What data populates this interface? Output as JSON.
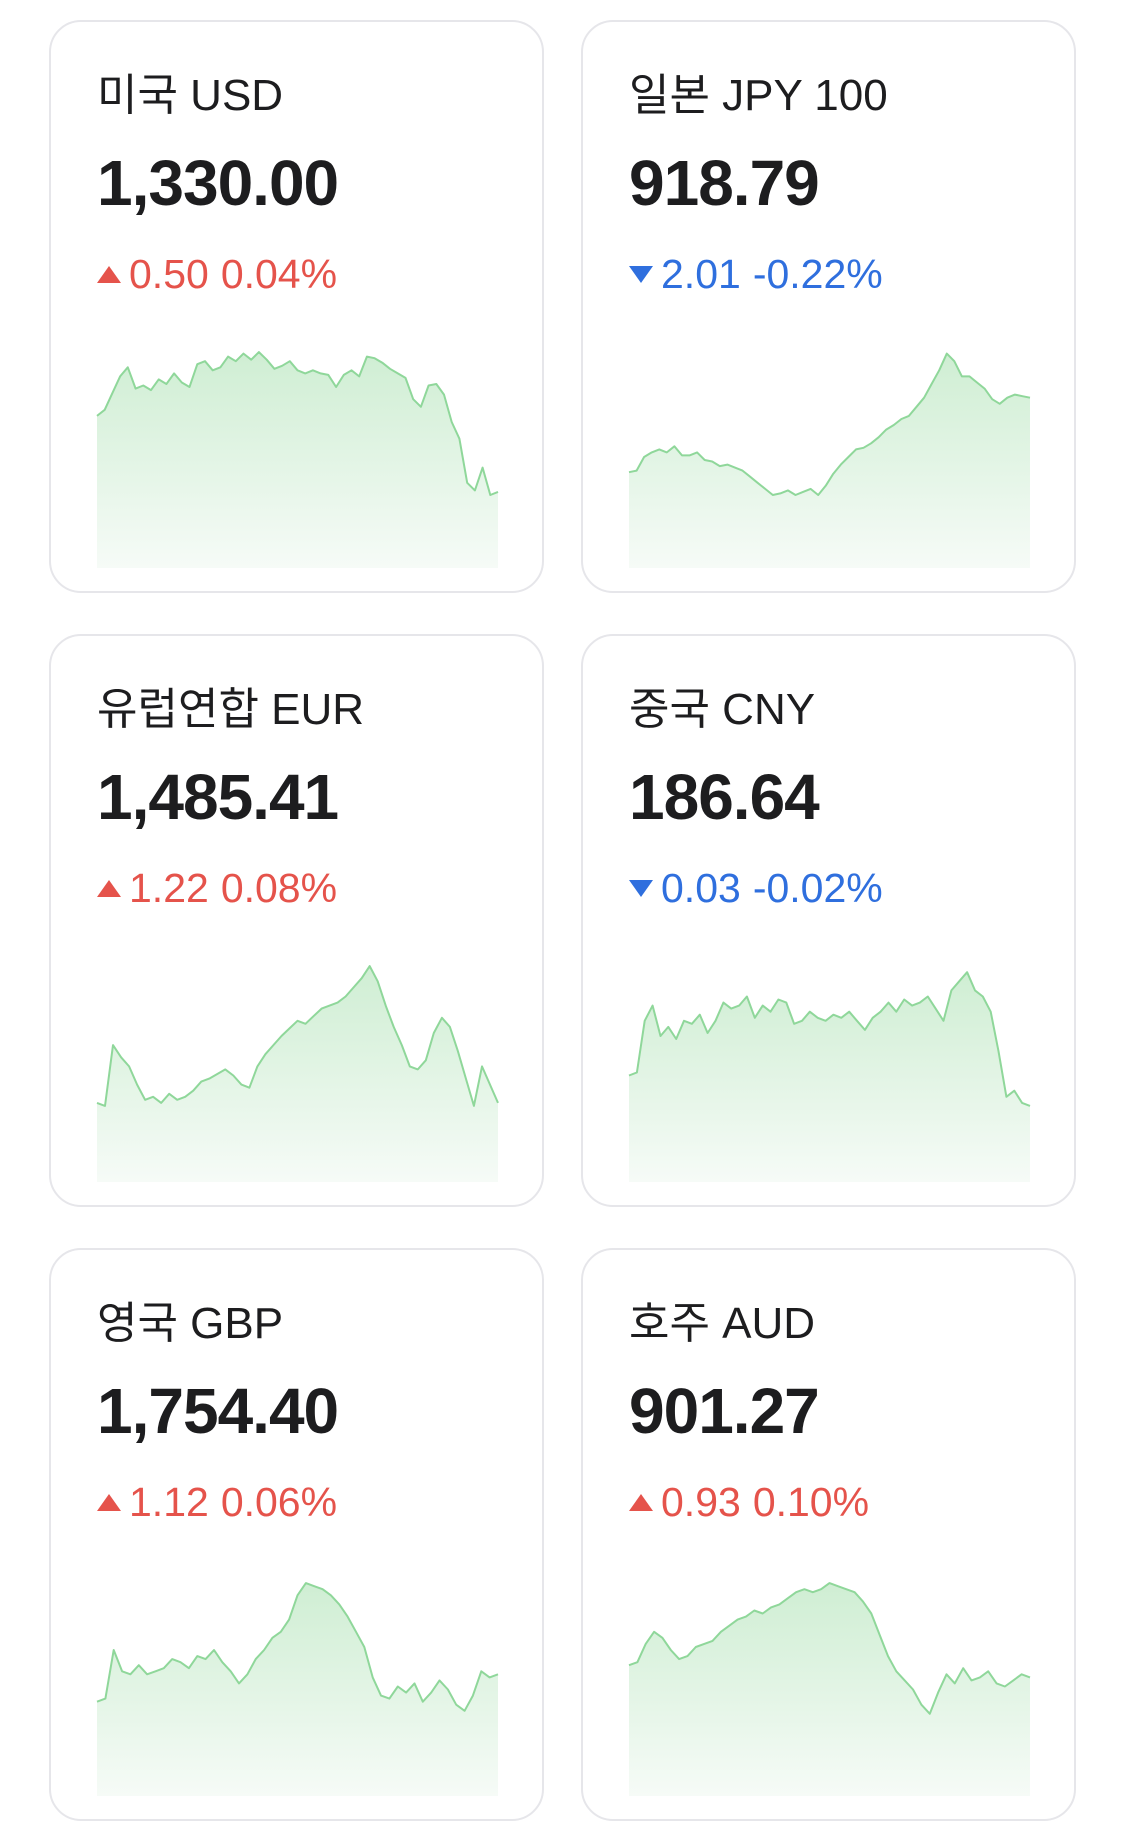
{
  "cards": [
    {
      "name": "미국 USD",
      "rate": "1,330.00",
      "direction": "up",
      "change": "0.50",
      "percent": "0.04%",
      "sparkline": [
        0.54,
        0.58,
        0.69,
        0.8,
        0.86,
        0.72,
        0.74,
        0.71,
        0.78,
        0.75,
        0.82,
        0.76,
        0.73,
        0.88,
        0.9,
        0.84,
        0.86,
        0.93,
        0.9,
        0.95,
        0.91,
        0.96,
        0.91,
        0.85,
        0.87,
        0.9,
        0.84,
        0.82,
        0.84,
        0.82,
        0.81,
        0.73,
        0.81,
        0.84,
        0.8,
        0.93,
        0.92,
        0.89,
        0.85,
        0.82,
        0.79,
        0.65,
        0.6,
        0.74,
        0.75,
        0.68,
        0.5,
        0.39,
        0.1,
        0.05,
        0.2,
        0.02,
        0.04
      ]
    },
    {
      "name": "일본 JPY 100",
      "rate": "918.79",
      "direction": "down",
      "change": "2.01",
      "percent": "-0.22%",
      "sparkline": [
        0.17,
        0.18,
        0.27,
        0.3,
        0.32,
        0.3,
        0.34,
        0.28,
        0.28,
        0.3,
        0.25,
        0.24,
        0.21,
        0.22,
        0.2,
        0.18,
        0.14,
        0.1,
        0.06,
        0.02,
        0.03,
        0.05,
        0.02,
        0.04,
        0.06,
        0.02,
        0.08,
        0.16,
        0.22,
        0.27,
        0.32,
        0.33,
        0.36,
        0.4,
        0.45,
        0.48,
        0.52,
        0.54,
        0.6,
        0.66,
        0.75,
        0.84,
        0.95,
        0.9,
        0.8,
        0.8,
        0.76,
        0.72,
        0.65,
        0.62,
        0.66,
        0.68,
        0.67,
        0.66
      ]
    },
    {
      "name": "유럽연합 EUR",
      "rate": "1,485.41",
      "direction": "up",
      "change": "1.22",
      "percent": "0.08%",
      "sparkline": [
        0.06,
        0.04,
        0.44,
        0.36,
        0.3,
        0.18,
        0.08,
        0.1,
        0.06,
        0.12,
        0.08,
        0.1,
        0.14,
        0.2,
        0.22,
        0.25,
        0.28,
        0.24,
        0.18,
        0.16,
        0.3,
        0.38,
        0.44,
        0.5,
        0.55,
        0.6,
        0.58,
        0.63,
        0.68,
        0.7,
        0.72,
        0.76,
        0.82,
        0.88,
        0.96,
        0.86,
        0.7,
        0.56,
        0.44,
        0.3,
        0.28,
        0.34,
        0.52,
        0.62,
        0.56,
        0.4,
        0.22,
        0.04,
        0.3,
        0.18,
        0.06
      ]
    },
    {
      "name": "중국 CNY",
      "rate": "186.64",
      "direction": "down",
      "change": "0.03",
      "percent": "-0.02%",
      "sparkline": [
        0.24,
        0.26,
        0.6,
        0.7,
        0.5,
        0.56,
        0.48,
        0.6,
        0.58,
        0.64,
        0.52,
        0.6,
        0.72,
        0.68,
        0.7,
        0.76,
        0.62,
        0.7,
        0.66,
        0.74,
        0.72,
        0.58,
        0.6,
        0.66,
        0.62,
        0.6,
        0.64,
        0.62,
        0.66,
        0.6,
        0.54,
        0.62,
        0.66,
        0.72,
        0.66,
        0.74,
        0.7,
        0.72,
        0.76,
        0.68,
        0.6,
        0.8,
        0.86,
        0.92,
        0.8,
        0.76,
        0.66,
        0.4,
        0.1,
        0.14,
        0.06,
        0.04
      ]
    },
    {
      "name": "영국 GBP",
      "rate": "1,754.40",
      "direction": "up",
      "change": "1.12",
      "percent": "0.06%",
      "sparkline": [
        0.16,
        0.18,
        0.5,
        0.36,
        0.34,
        0.4,
        0.34,
        0.36,
        0.38,
        0.44,
        0.42,
        0.38,
        0.46,
        0.44,
        0.5,
        0.42,
        0.36,
        0.28,
        0.34,
        0.44,
        0.5,
        0.58,
        0.62,
        0.7,
        0.86,
        0.94,
        0.92,
        0.9,
        0.86,
        0.8,
        0.72,
        0.62,
        0.52,
        0.32,
        0.2,
        0.18,
        0.26,
        0.22,
        0.28,
        0.16,
        0.22,
        0.3,
        0.24,
        0.14,
        0.1,
        0.2,
        0.36,
        0.32,
        0.34
      ]
    },
    {
      "name": "호주 AUD",
      "rate": "901.27",
      "direction": "up",
      "change": "0.93",
      "percent": "0.10%",
      "sparkline": [
        0.4,
        0.42,
        0.54,
        0.62,
        0.58,
        0.5,
        0.44,
        0.46,
        0.52,
        0.54,
        0.56,
        0.62,
        0.66,
        0.7,
        0.72,
        0.76,
        0.74,
        0.78,
        0.8,
        0.84,
        0.88,
        0.9,
        0.88,
        0.9,
        0.94,
        0.92,
        0.9,
        0.88,
        0.82,
        0.74,
        0.6,
        0.46,
        0.36,
        0.3,
        0.24,
        0.14,
        0.08,
        0.22,
        0.34,
        0.28,
        0.38,
        0.3,
        0.32,
        0.36,
        0.28,
        0.26,
        0.3,
        0.34,
        0.32
      ]
    }
  ],
  "colors": {
    "up": "#e5534b",
    "down": "#2f6fde",
    "line": "#8fd79a",
    "fill_top": "#cfeed3",
    "fill_bottom": "#f6fbf7"
  }
}
